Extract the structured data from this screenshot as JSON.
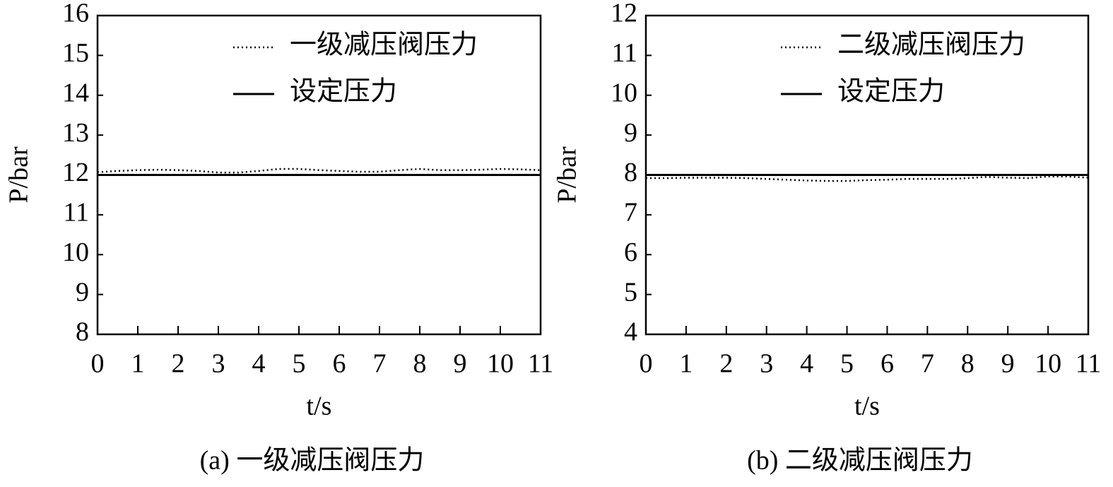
{
  "chart_data": [
    {
      "type": "line",
      "caption": "(a) 一级减压阀压力",
      "x_label": "t/s",
      "y_label": "P/bar",
      "x": [
        0,
        0.5,
        1,
        1.5,
        2,
        2.5,
        3,
        3.5,
        4,
        4.5,
        5,
        5.5,
        6,
        6.5,
        7,
        7.5,
        8,
        8.5,
        9,
        9.5,
        10,
        10.5,
        11
      ],
      "series": [
        {
          "name": "一级减压阀压力",
          "color": "#000000",
          "style": "dotted",
          "values": [
            12.07,
            12.1,
            12.12,
            12.13,
            12.12,
            12.1,
            12.06,
            12.06,
            12.1,
            12.15,
            12.15,
            12.12,
            12.1,
            12.08,
            12.08,
            12.12,
            12.15,
            12.12,
            12.12,
            12.13,
            12.15,
            12.14,
            12.12
          ]
        },
        {
          "name": "设定压力",
          "color": "#000000",
          "style": "solid",
          "values": [
            12,
            12,
            12,
            12,
            12,
            12,
            12,
            12,
            12,
            12,
            12,
            12,
            12,
            12,
            12,
            12,
            12,
            12,
            12,
            12,
            12,
            12,
            12
          ]
        }
      ],
      "xlim": [
        0,
        11
      ],
      "xticks": [
        0,
        1,
        2,
        3,
        4,
        5,
        6,
        7,
        8,
        9,
        10,
        11
      ],
      "ylim": [
        8,
        16
      ],
      "yticks": [
        8,
        9,
        10,
        11,
        12,
        13,
        14,
        15,
        16
      ],
      "legend": "upper right"
    },
    {
      "type": "line",
      "caption": "(b) 二级减压阀压力",
      "x_label": "t/s",
      "y_label": "P/bar",
      "x": [
        0,
        0.5,
        1,
        1.5,
        2,
        2.5,
        3,
        3.5,
        4,
        4.5,
        5,
        5.5,
        6,
        6.5,
        7,
        7.5,
        8,
        8.5,
        9,
        9.5,
        10,
        10.5,
        11
      ],
      "series": [
        {
          "name": "二级减压阀压力",
          "color": "#000000",
          "style": "dotted",
          "values": [
            7.92,
            7.92,
            7.93,
            7.93,
            7.93,
            7.92,
            7.9,
            7.88,
            7.86,
            7.85,
            7.85,
            7.87,
            7.88,
            7.9,
            7.9,
            7.9,
            7.92,
            7.95,
            7.93,
            7.92,
            7.96,
            7.96,
            7.93
          ]
        },
        {
          "name": "设定压力",
          "color": "#000000",
          "style": "solid",
          "values": [
            8,
            8,
            8,
            8,
            8,
            8,
            8,
            8,
            8,
            8,
            8,
            8,
            8,
            8,
            8,
            8,
            8,
            8,
            8,
            8,
            8,
            8,
            8
          ]
        }
      ],
      "xlim": [
        0,
        11
      ],
      "xticks": [
        0,
        1,
        2,
        3,
        4,
        5,
        6,
        7,
        8,
        9,
        10,
        11
      ],
      "ylim": [
        4,
        12
      ],
      "yticks": [
        4,
        5,
        6,
        7,
        8,
        9,
        10,
        11,
        12
      ],
      "legend": "upper right"
    }
  ]
}
